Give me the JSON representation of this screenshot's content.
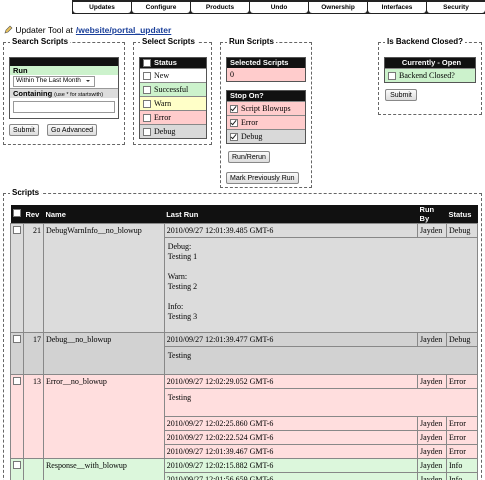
{
  "tabs": [
    "Updates",
    "Configure",
    "Products",
    "Undo",
    "Ownership",
    "Interfaces",
    "Security"
  ],
  "header": {
    "prefix": "Updater Tool at",
    "path_root": "/website/",
    "path_leaf": "portal_updater"
  },
  "search": {
    "title": "Search Scripts",
    "run_label": "Run",
    "range": "Within The Last Month",
    "containing_label": "Containing",
    "containing_hint": "(use * for startswith)",
    "buttons": [
      "Submit",
      "Go Advanced"
    ]
  },
  "select": {
    "title": "Select Scripts",
    "header": "Status",
    "statuses": [
      {
        "label": "New",
        "color": "#ffffff"
      },
      {
        "label": "Successful",
        "color": "#ccf2cc"
      },
      {
        "label": "Warn",
        "color": "#ffffc8"
      },
      {
        "label": "Error",
        "color": "#ffcccc"
      },
      {
        "label": "Debug",
        "color": "#d9d9d9"
      }
    ]
  },
  "run": {
    "title": "Run Scripts",
    "selected_label": "Selected Scripts",
    "selected_count": 0,
    "selected_color": "#ffcccc",
    "stop_title": "Stop On?",
    "stop_options": [
      {
        "label": "Script Blowups",
        "color": "#ffcccc",
        "checked": true
      },
      {
        "label": "Error",
        "color": "#ffcccc",
        "checked": true
      },
      {
        "label": "Debug",
        "color": "#d9d9d9",
        "checked": true
      }
    ],
    "buttons": [
      "Run/Rerun",
      "Mark Previously Run"
    ]
  },
  "backend": {
    "title": "Is Backend Closed?",
    "status_header": "Currently - Open",
    "option": "Backend Closed?",
    "option_color": "#ccf2cc",
    "checked": false,
    "button": "Submit"
  },
  "scripts": {
    "title": "Scripts",
    "columns": [
      "Rev",
      "Name",
      "Last Run",
      "Run By",
      "Status"
    ],
    "groups": [
      {
        "rev": 21,
        "name": "DebugWarnInfo__no_blowup",
        "color": "#dcdcdc",
        "runs": [
          {
            "last_run": "2010/09/27 12:01:39.485 GMT-6",
            "run_by": "Jayden",
            "status": "Debug"
          }
        ],
        "detail": [
          "Debug:\nTesting 1",
          "Warn:\nTesting 2",
          "Info:\nTesting 3"
        ]
      },
      {
        "rev": 17,
        "name": "Debug__no_blowup",
        "color": "#d2d2d2",
        "runs": [
          {
            "last_run": "2010/09/27 12:01:39.477 GMT-6",
            "run_by": "Jayden",
            "status": "Debug"
          }
        ],
        "detail": [
          "Testing"
        ]
      },
      {
        "rev": 13,
        "name": "Error__no_blowup",
        "color": "#ffdede",
        "runs": [
          {
            "last_run": "2010/09/27 12:02:29.052 GMT-6",
            "run_by": "Jayden",
            "status": "Error"
          },
          {
            "last_run": "2010/09/27 12:02:25.860 GMT-6",
            "run_by": "Jayden",
            "status": "Error"
          },
          {
            "last_run": "2010/09/27 12:02:22.524 GMT-6",
            "run_by": "Jayden",
            "status": "Error"
          },
          {
            "last_run": "2010/09/27 12:01:39.467 GMT-6",
            "run_by": "Jayden",
            "status": "Error"
          }
        ],
        "detail": [
          "Testing"
        ]
      },
      {
        "name": "Response__with_blowup",
        "color": "#dcf7dc",
        "runs": [
          {
            "last_run": "2010/09/27 12:02:15.882 GMT-6",
            "run_by": "Jayden",
            "status": "Info"
          },
          {
            "last_run": "2010/09/27 12:01:56.659 GMT-6",
            "run_by": "Jayden",
            "status": "Info"
          }
        ]
      }
    ]
  }
}
